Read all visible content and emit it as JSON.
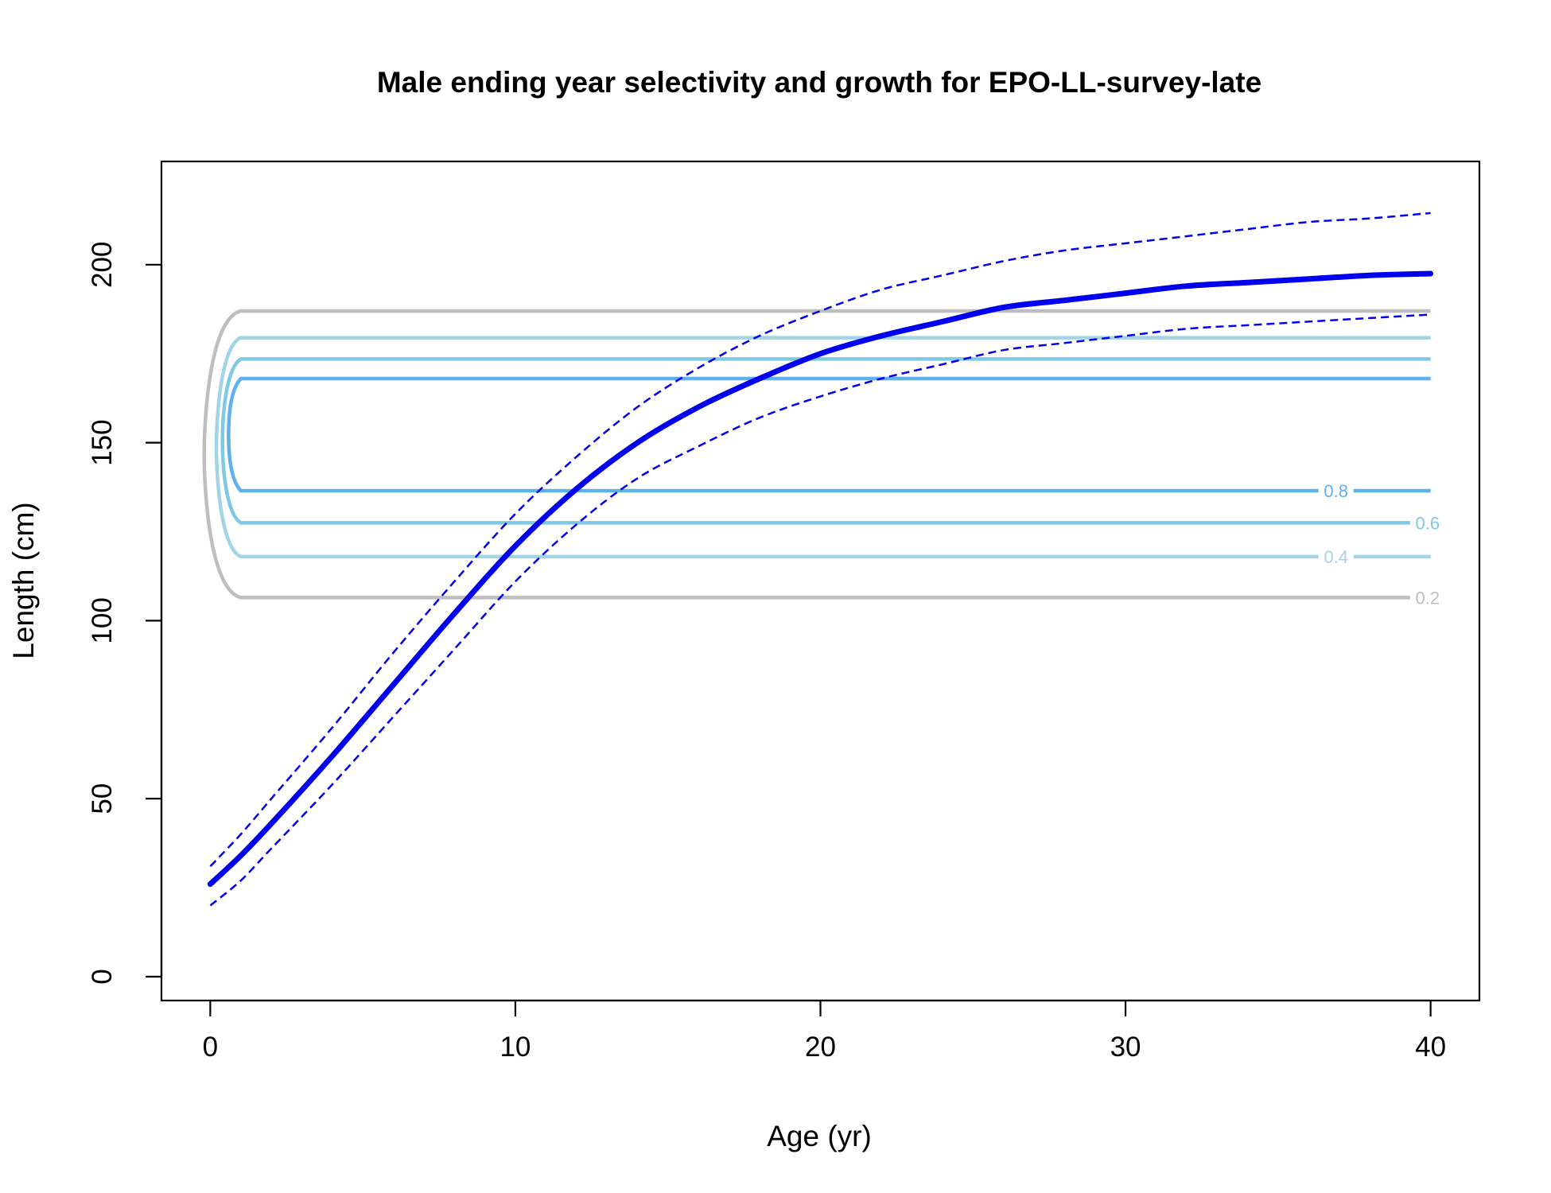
{
  "chart_data": {
    "type": "line",
    "title": "Male ending year selectivity and growth for EPO-LL-survey-late",
    "xlabel": "Age (yr)",
    "ylabel": "Length (cm)",
    "xlim": [
      -1.6,
      41.6
    ],
    "ylim": [
      -6.7,
      229
    ],
    "xticks": [
      0,
      10,
      20,
      30,
      40
    ],
    "yticks": [
      0,
      50,
      100,
      150,
      200
    ],
    "grid": false,
    "growth": {
      "color": "#0000ee",
      "ages": [
        0,
        1,
        2,
        4,
        6,
        8,
        10,
        12,
        14,
        16,
        18,
        20,
        22,
        24,
        26,
        28,
        30,
        32,
        34,
        36,
        38,
        40
      ],
      "mean": [
        26,
        34,
        43,
        62,
        82,
        102,
        121,
        137,
        150,
        160,
        168,
        175,
        180,
        184,
        188,
        190,
        192,
        194,
        195,
        196,
        197,
        197.5
      ],
      "upper": [
        31,
        40,
        50,
        70,
        91,
        111,
        130,
        146,
        160,
        171,
        180,
        187,
        193,
        197,
        201,
        204,
        206,
        208,
        210,
        212,
        213,
        214.5
      ],
      "lower": [
        20,
        27,
        36,
        54,
        73,
        92,
        111,
        127,
        140,
        149,
        157,
        163,
        168,
        172,
        176,
        178,
        180,
        182,
        183,
        184,
        185,
        186
      ]
    },
    "contours": [
      {
        "level": "0.2",
        "color": "#bebebe",
        "lower": 106.5,
        "upper": 187,
        "left_age": -0.2
      },
      {
        "level": "0.4",
        "color": "#a3d4e6",
        "lower": 118,
        "upper": 179.5,
        "left_age": 0.2
      },
      {
        "level": "0.6",
        "color": "#7ec9e3",
        "lower": 127.5,
        "upper": 173.5,
        "left_age": 0.4
      },
      {
        "level": "0.8",
        "color": "#5fb0ee",
        "lower": 136.5,
        "upper": 168,
        "left_age": 0.6
      }
    ]
  }
}
